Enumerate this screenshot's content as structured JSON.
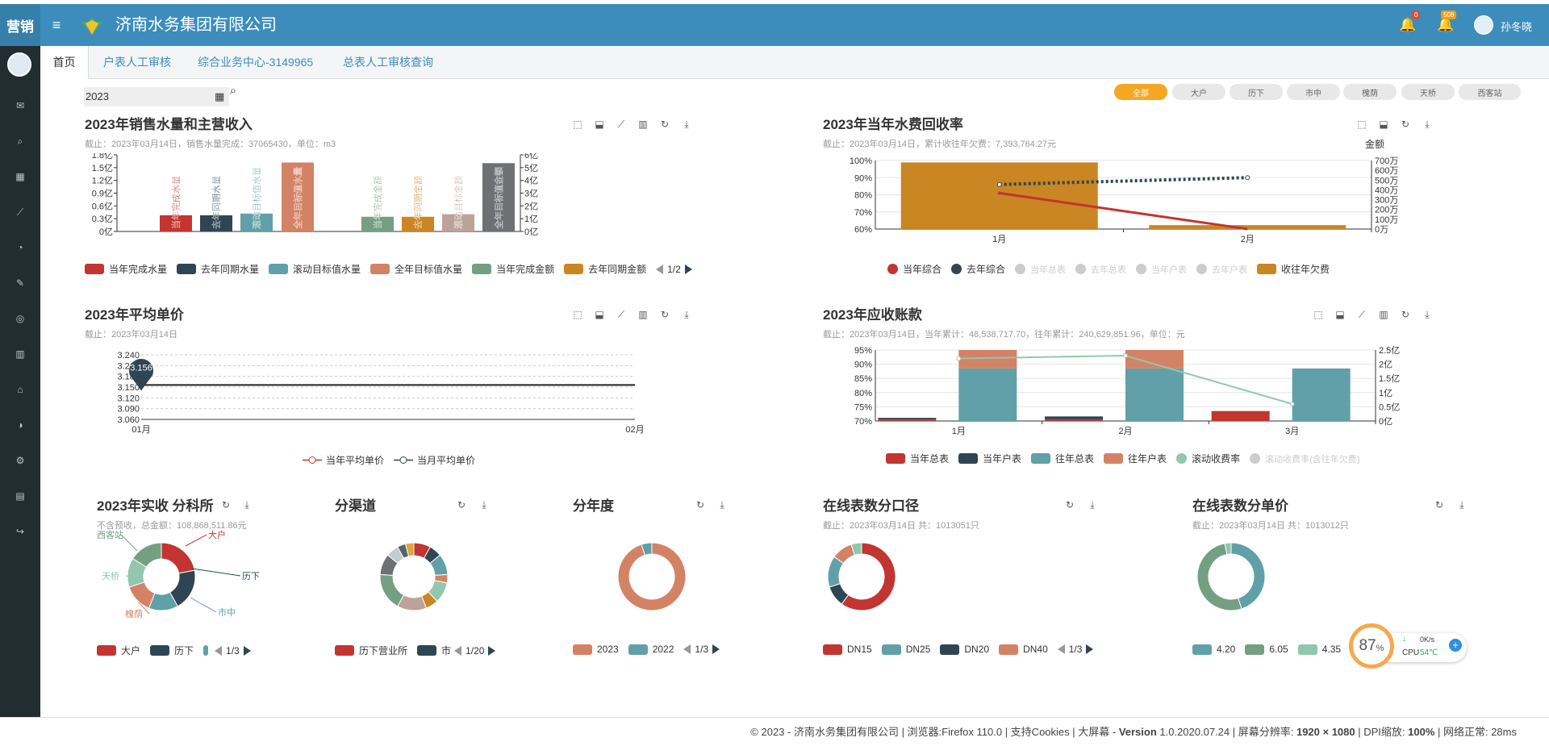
{
  "header": {
    "brand": "营销",
    "company": "济南水务集团有限公司",
    "username": "孙冬晓",
    "notif_count": "0",
    "alert_count": "508"
  },
  "tabs": [
    "首页",
    "户表人工审核",
    "综合业务中心-3149965",
    "总表人工审核查询"
  ],
  "filter": {
    "year": "2023"
  },
  "districts": [
    "全部",
    "大户",
    "历下",
    "市中",
    "槐荫",
    "天桥",
    "西客站"
  ],
  "colors": {
    "red": "#c23531",
    "navy": "#2f4554",
    "teal": "#61a0a8",
    "salmon": "#d48265",
    "green": "#91c7ae",
    "olive": "#749f83",
    "orange": "#ca8622",
    "tan": "#bda29a",
    "gray": "#6e7074",
    "accent": "#f5a623"
  },
  "chart1": {
    "title": "2023年销售水量和主营收入",
    "subtitle": "截止：2023年03月14日，销售水量完成：37065430，单位：m3",
    "page": "1/2",
    "legend": [
      "当年完成水量",
      "去年同期水量",
      "滚动目标值水量",
      "全年目标值水量",
      "当年完成金额",
      "去年同期金额"
    ],
    "chart_data": {
      "type": "bar",
      "categories": [
        "当年完成水量",
        "去年同期水量",
        "滚动目标值水量",
        "全年目标值水量",
        "当年完成金额",
        "去年同期金额",
        "滚动目标金额",
        "全年目标值金额"
      ],
      "values": [
        0.38,
        0.38,
        0.42,
        1.62,
        1.15,
        1.15,
        1.35,
        5.35
      ],
      "y_left_ticks": [
        "1.8亿",
        "1.5亿",
        "1.2亿",
        "0.9亿",
        "0.6亿",
        "0.3亿",
        "0亿"
      ],
      "y_left_max": 1.8,
      "y_right_ticks": [
        "6亿",
        "5亿",
        "4亿",
        "3亿",
        "2亿",
        "1亿",
        "0亿"
      ],
      "y_right_max": 6
    }
  },
  "chart2": {
    "title": "2023年当年水费回收率",
    "subtitle": "截止：2023年03月14日，累计收往年欠费：7,393,764.27元",
    "amount_label": "金额",
    "legend": [
      "当年综合",
      "去年综合",
      "当年总表",
      "去年总表",
      "当年户表",
      "去年户表",
      "收往年欠费"
    ],
    "chart_data": {
      "type": "bar",
      "categories": [
        "1月",
        "2月"
      ],
      "y_left_ticks": [
        "100%",
        "90%",
        "80%",
        "70%",
        "60%"
      ],
      "y_right_ticks": [
        "700万",
        "600万",
        "500万",
        "400万",
        "300万",
        "200万",
        "100万",
        "0万"
      ],
      "series": [
        {
          "name": "收往年欠费",
          "values": [
            680,
            40
          ]
        },
        {
          "name": "当年综合",
          "values": [
            81,
            60
          ]
        },
        {
          "name": "去年综合",
          "values": [
            86,
            90
          ]
        }
      ]
    }
  },
  "chart3": {
    "title": "2023年平均单价",
    "subtitle": "截止：2023年03月14日",
    "marker": "3.156",
    "legend": [
      "当年平均单价",
      "当月平均单价"
    ],
    "chart_data": {
      "type": "line",
      "categories": [
        "01月",
        "02月"
      ],
      "y_ticks": [
        "3.240",
        "3.210",
        "3.180",
        "3.150",
        "3.120",
        "3.090",
        "3.060"
      ],
      "series": [
        {
          "name": "当年平均单价",
          "values": [
            3.156,
            3.156
          ]
        }
      ]
    }
  },
  "chart4": {
    "title": "2023年应收账款",
    "subtitle": "截止：2023年03月14日，当年累计：48,538,717.70，往年累计：240,629,851.96，单位：元",
    "legend": [
      "当年总表",
      "当年户表",
      "往年总表",
      "往年户表",
      "滚动收费率",
      "滚动收费率(含往年欠费)"
    ],
    "chart_data": {
      "type": "bar",
      "categories": [
        "1月",
        "2月",
        "3月"
      ],
      "y_left_ticks": [
        "95%",
        "90%",
        "85%",
        "80%",
        "75%",
        "70%"
      ],
      "y_right_ticks": [
        "2.5亿",
        "2亿",
        "1.5亿",
        "1亿",
        "0.5亿",
        "0亿"
      ],
      "series": [
        {
          "name": "当年总表",
          "values": [
            0.05,
            0.06,
            0.35
          ]
        },
        {
          "name": "当年户表",
          "values": [
            0.06,
            0.1,
            0
          ]
        },
        {
          "name": "往年总表",
          "values": [
            1.85,
            1.85,
            1.85
          ]
        },
        {
          "name": "往年户表",
          "values": [
            0.65,
            0.65,
            0
          ]
        },
        {
          "name": "滚动收费率",
          "values": [
            92,
            93,
            76
          ]
        }
      ]
    }
  },
  "donut1": {
    "title": "2023年实收 分科所",
    "subtitle": "不含预收，总金额：108,868,511.86元",
    "page": "1/3",
    "legend": [
      "大户",
      "历下"
    ],
    "labels": [
      "大户",
      "历下",
      "市中",
      "槐荫",
      "天桥",
      "西客站"
    ],
    "chart_data": {
      "type": "pie",
      "values": [
        22,
        20,
        14,
        14,
        14,
        16
      ]
    }
  },
  "donut2": {
    "title": "分渠道",
    "page": "1/20",
    "legend": [
      "历下营业所",
      "市"
    ],
    "chart_data": {
      "type": "pie",
      "values": [
        8,
        6,
        10,
        4,
        10,
        6,
        14,
        18,
        10,
        6,
        4,
        4
      ]
    }
  },
  "donut3": {
    "title": "分年度",
    "page": "1/3",
    "legend": [
      "2023",
      "2022"
    ],
    "chart_data": {
      "type": "pie",
      "values": [
        95,
        5
      ]
    }
  },
  "donut4": {
    "title": "在线表数分口径",
    "subtitle": "截止：2023年03月14日 共：1013051只",
    "page": "1/3",
    "legend": [
      "DN15",
      "DN25",
      "DN20",
      "DN40"
    ],
    "chart_data": {
      "type": "pie",
      "values": [
        60,
        10,
        15,
        10,
        5
      ]
    }
  },
  "donut5": {
    "title": "在线表数分单价",
    "subtitle": "截止：2023年03月14日 共：1013012只",
    "legend": [
      "4.20",
      "6.05",
      "4.35"
    ],
    "chart_data": {
      "type": "pie",
      "values": [
        45,
        52,
        3
      ]
    }
  },
  "widget": {
    "percent": "87",
    "unit": "%",
    "speed": "0K/s",
    "cpu": "CPU",
    "temp": "54℃"
  },
  "footer": {
    "text_a": "© 2023 - 济南水务集团有限公司 | 浏览器:Firefox 110.0 | 支持Cookies | 大屏幕 - ",
    "version_label": "Version",
    "version": " 1.0.2020.07.24 | 屏幕分辨率: ",
    "resolution": "1920 × 1080",
    "dpi_label": " | DPI缩放: ",
    "dpi": "100%",
    "net": " | 网络正常: 28ms"
  }
}
